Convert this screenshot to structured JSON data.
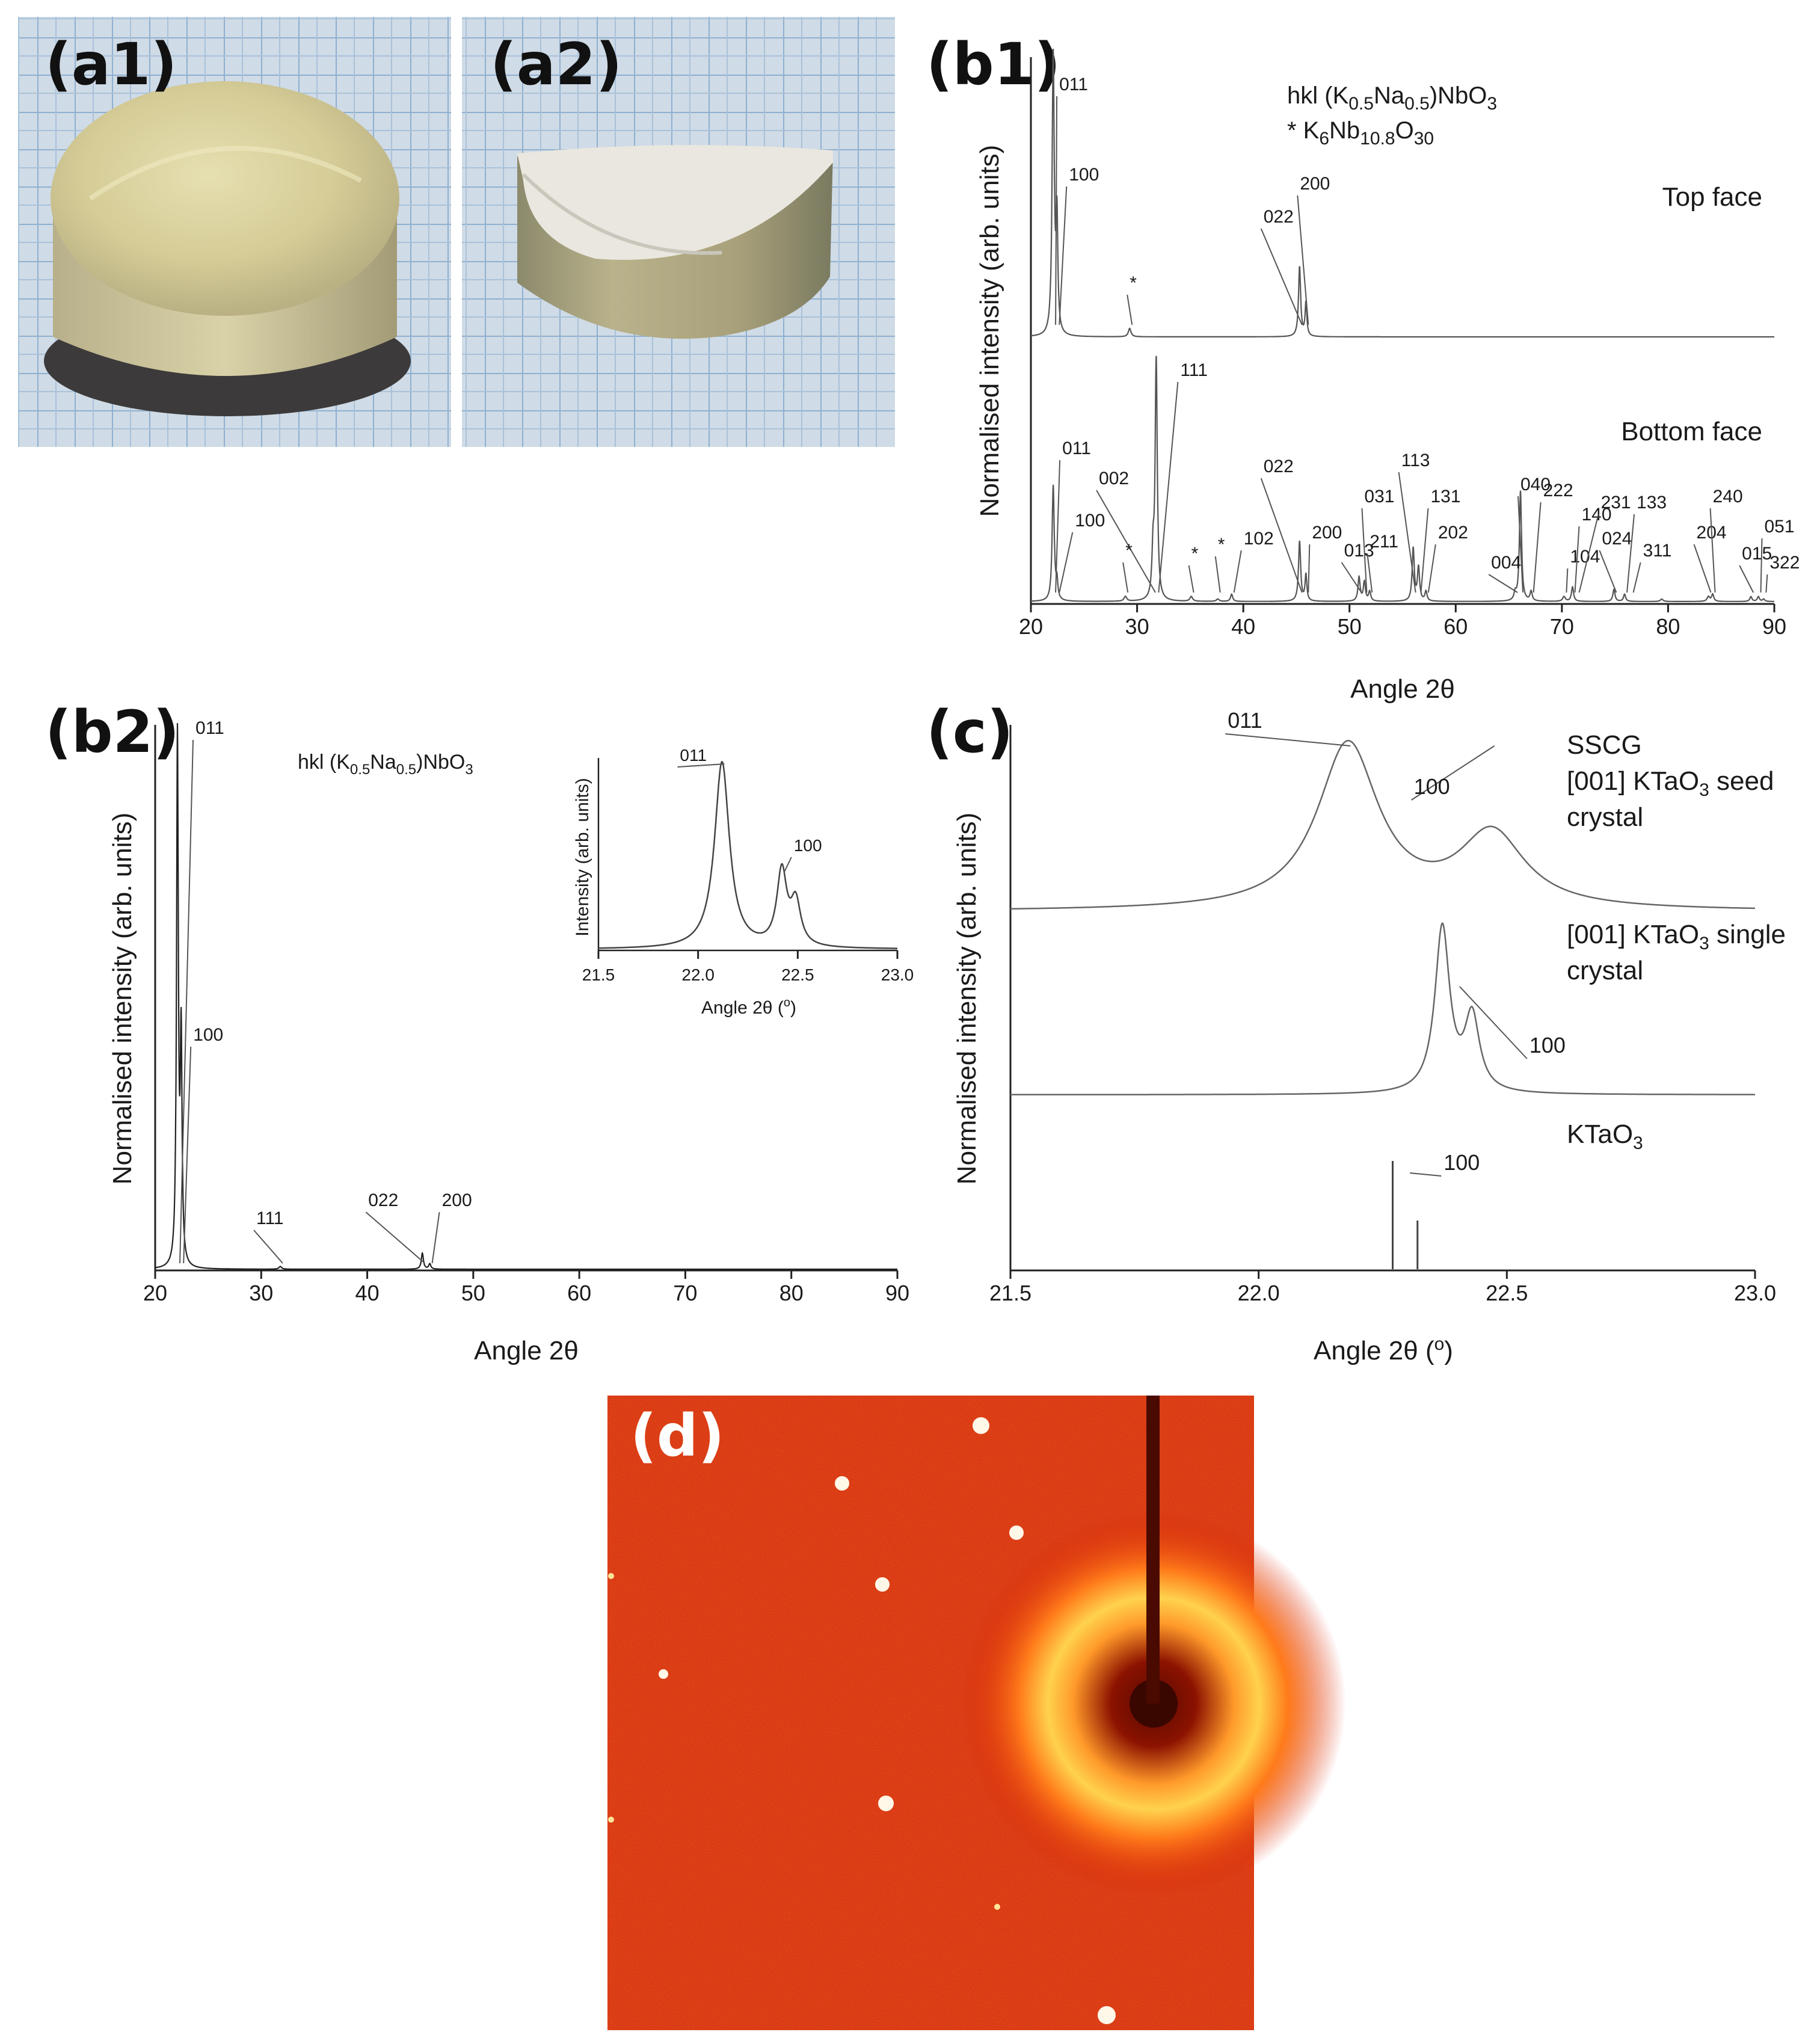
{
  "panels": {
    "a1": "(a1)",
    "a2": "(a2)",
    "b1": "(b1)",
    "b2": "(b2)",
    "c": "(c)",
    "d": "(d)"
  },
  "colors": {
    "line": "#555555",
    "axis": "#222222",
    "grid_bg": "#cfdbe6",
    "grid_line": "#8fb0d0",
    "pattern_bg": "#d41a00",
    "pattern_ring": "#ffc845"
  },
  "chart_data": [
    {
      "id": "b1",
      "type": "line",
      "xlabel": "Angle 2θ",
      "ylabel": "Normalised intensity (arb. units)",
      "xlim": [
        20,
        90
      ],
      "xticks": [
        20,
        30,
        40,
        50,
        60,
        70,
        80,
        90
      ],
      "legend": [
        "hkl (K0.5Na0.5)NbO3",
        "* K6Nb10.8O30"
      ],
      "series": [
        {
          "name": "Top face",
          "peaks": [
            {
              "x": 22.1,
              "h": 1.0,
              "w": 0.12
            },
            {
              "x": 22.45,
              "h": 0.4,
              "w": 0.1
            },
            {
              "x": 29.3,
              "h": 0.03,
              "w": 0.15
            },
            {
              "x": 45.3,
              "h": 0.25,
              "w": 0.12
            },
            {
              "x": 45.9,
              "h": 0.12,
              "w": 0.1
            }
          ],
          "labels": [
            {
              "text": "011",
              "x": 22.1
            },
            {
              "text": "100",
              "x": 22.45
            },
            {
              "text": "*",
              "x": 29.3
            },
            {
              "text": "022",
              "x": 45.3
            },
            {
              "text": "200",
              "x": 45.9
            }
          ]
        },
        {
          "name": "Bottom face",
          "peaks": [
            {
              "x": 22.1,
              "h": 0.48,
              "w": 0.12
            },
            {
              "x": 22.45,
              "h": 0.07,
              "w": 0.1
            },
            {
              "x": 28.9,
              "h": 0.02,
              "w": 0.15
            },
            {
              "x": 31.5,
              "h": 0.18,
              "w": 0.12
            },
            {
              "x": 31.8,
              "h": 1.0,
              "w": 0.12
            },
            {
              "x": 35.1,
              "h": 0.02,
              "w": 0.15
            },
            {
              "x": 37.6,
              "h": 0.01,
              "w": 0.15
            },
            {
              "x": 38.9,
              "h": 0.03,
              "w": 0.12
            },
            {
              "x": 45.3,
              "h": 0.25,
              "w": 0.12
            },
            {
              "x": 45.9,
              "h": 0.11,
              "w": 0.1
            },
            {
              "x": 50.9,
              "h": 0.1,
              "w": 0.12
            },
            {
              "x": 51.4,
              "h": 0.08,
              "w": 0.12
            },
            {
              "x": 51.9,
              "h": 0.04,
              "w": 0.12
            },
            {
              "x": 56.0,
              "h": 0.22,
              "w": 0.12
            },
            {
              "x": 56.5,
              "h": 0.14,
              "w": 0.12
            },
            {
              "x": 57.2,
              "h": 0.04,
              "w": 0.12
            },
            {
              "x": 65.6,
              "h": 0.03,
              "w": 0.12
            },
            {
              "x": 66.1,
              "h": 0.46,
              "w": 0.12
            },
            {
              "x": 67.1,
              "h": 0.04,
              "w": 0.12
            },
            {
              "x": 70.2,
              "h": 0.02,
              "w": 0.15
            },
            {
              "x": 71.0,
              "h": 0.06,
              "w": 0.12
            },
            {
              "x": 74.9,
              "h": 0.05,
              "w": 0.12
            },
            {
              "x": 75.9,
              "h": 0.03,
              "w": 0.12
            },
            {
              "x": 79.4,
              "h": 0.01,
              "w": 0.15
            },
            {
              "x": 83.8,
              "h": 0.02,
              "w": 0.15
            },
            {
              "x": 84.2,
              "h": 0.03,
              "w": 0.12
            },
            {
              "x": 87.8,
              "h": 0.02,
              "w": 0.12
            },
            {
              "x": 88.5,
              "h": 0.02,
              "w": 0.12
            },
            {
              "x": 89.0,
              "h": 0.01,
              "w": 0.12
            }
          ],
          "labels": [
            {
              "text": "011",
              "x": 22.1
            },
            {
              "text": "100",
              "x": 22.45
            },
            {
              "text": "002",
              "x": 31.5
            },
            {
              "text": "111",
              "x": 31.8
            },
            {
              "text": "*",
              "x": 28.9
            },
            {
              "text": "*",
              "x": 35.1
            },
            {
              "text": "*",
              "x": 37.6
            },
            {
              "text": "102",
              "x": 38.9
            },
            {
              "text": "022",
              "x": 45.3
            },
            {
              "text": "200",
              "x": 45.9
            },
            {
              "text": "013",
              "x": 50.9
            },
            {
              "text": "031",
              "x": 51.4
            },
            {
              "text": "211",
              "x": 51.9
            },
            {
              "text": "113",
              "x": 56.0
            },
            {
              "text": "131",
              "x": 56.5
            },
            {
              "text": "202",
              "x": 57.2
            },
            {
              "text": "004",
              "x": 65.6
            },
            {
              "text": "040",
              "x": 66.1
            },
            {
              "text": "222",
              "x": 67.1
            },
            {
              "text": "104",
              "x": 70.2
            },
            {
              "text": "140",
              "x": 71.0
            },
            {
              "text": "231",
              "x": 71.4
            },
            {
              "text": "024",
              "x": 74.9
            },
            {
              "text": "133",
              "x": 75.9
            },
            {
              "text": "311",
              "x": 76.5
            },
            {
              "text": "204",
              "x": 83.8
            },
            {
              "text": "240",
              "x": 84.2
            },
            {
              "text": "015",
              "x": 87.8
            },
            {
              "text": "051",
              "x": 88.5
            },
            {
              "text": "322",
              "x": 89.0
            }
          ]
        }
      ]
    },
    {
      "id": "b2",
      "type": "line",
      "xlabel": "Angle 2θ",
      "ylabel": "Normalised intensity (arb. units)",
      "xlim": [
        20,
        90
      ],
      "xticks": [
        20,
        30,
        40,
        50,
        60,
        70,
        80,
        90
      ],
      "legend": "hkl (K0.5Na0.5)NbO3",
      "series": [
        {
          "name": "SSCG",
          "peaks": [
            {
              "x": 22.1,
              "h": 1.0,
              "w": 0.1
            },
            {
              "x": 22.45,
              "h": 0.42,
              "w": 0.1
            },
            {
              "x": 31.8,
              "h": 0.005,
              "w": 0.15
            },
            {
              "x": 45.2,
              "h": 0.03,
              "w": 0.12
            },
            {
              "x": 45.9,
              "h": 0.01,
              "w": 0.12
            }
          ],
          "labels": [
            {
              "text": "011",
              "x": 22.1
            },
            {
              "text": "100",
              "x": 22.45
            },
            {
              "text": "111",
              "x": 31.8
            },
            {
              "text": "022",
              "x": 45.2
            },
            {
              "text": "200",
              "x": 45.9
            }
          ]
        }
      ],
      "inset": {
        "xlabel": "Angle 2θ (o)",
        "ylabel": "Intensity (arb. units)",
        "xlim": [
          21.5,
          23.0
        ],
        "xticks": [
          "21.5",
          "22.0",
          "22.5",
          "23.0"
        ],
        "peaks": [
          {
            "x": 22.12,
            "h": 1.0,
            "w": 0.045
          },
          {
            "x": 22.42,
            "h": 0.4,
            "w": 0.03
          },
          {
            "x": 22.49,
            "h": 0.23,
            "w": 0.03
          }
        ],
        "labels": [
          {
            "text": "011",
            "x": 22.12
          },
          {
            "text": "100",
            "x": 22.42
          }
        ]
      }
    },
    {
      "id": "c",
      "type": "line",
      "xlabel": "Angle 2θ (o)",
      "ylabel": "Normalised intensity (arb. units)",
      "xlim": [
        21.5,
        23.0
      ],
      "xticks": [
        "21.5",
        "22.0",
        "22.5",
        "23.0"
      ],
      "series": [
        {
          "name": "SSCG [001] KTaO3 seed crystal",
          "peaks": [
            {
              "x": 22.18,
              "h": 1.0,
              "w": 0.075
            },
            {
              "x": 22.47,
              "h": 0.45,
              "w": 0.08
            }
          ],
          "labels": [
            {
              "text": "011",
              "x": 22.18
            },
            {
              "text": "100",
              "x": 22.47
            }
          ]
        },
        {
          "name": "[001] KTaO3 single crystal",
          "peaks": [
            {
              "x": 22.37,
              "h": 1.0,
              "w": 0.018
            },
            {
              "x": 22.43,
              "h": 0.45,
              "w": 0.018
            }
          ],
          "labels": [
            {
              "text": "100",
              "x": 22.4
            }
          ]
        },
        {
          "name": "KTaO3",
          "sticks": [
            {
              "x": 22.27,
              "h": 1.0
            },
            {
              "x": 22.32,
              "h": 0.45
            }
          ],
          "labels": [
            {
              "text": "100",
              "x": 22.3
            }
          ]
        }
      ]
    }
  ]
}
